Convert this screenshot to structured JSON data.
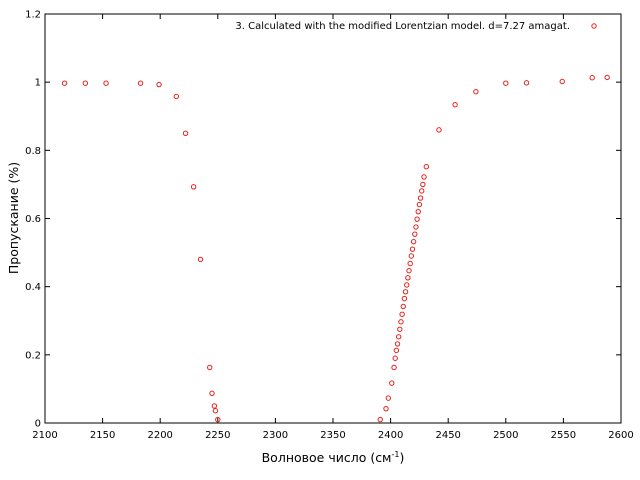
{
  "chart_data": {
    "type": "scatter",
    "title": "",
    "xlabel": "Волновое число (см",
    "xlabel_sup": "-1",
    "xlabel_suffix": ")",
    "ylabel": "Пропускание (%)",
    "xlim": [
      2100,
      2600
    ],
    "ylim": [
      0,
      1.2
    ],
    "x_ticks": [
      "2100",
      "2150",
      "2200",
      "2250",
      "2300",
      "2350",
      "2400",
      "2450",
      "2500",
      "2550",
      "2600"
    ],
    "y_ticks": [
      "0",
      "0.2",
      "0.4",
      "0.6",
      "0.8",
      "1",
      "1.2"
    ],
    "grid": false,
    "legend_position": "top-right",
    "marker": "open-circle",
    "series": [
      {
        "name": "3. Calculated with the modified Lorentzian model. d=7.27 amagat.",
        "color": "#e8211b",
        "points": [
          [
            2117,
            0.997
          ],
          [
            2135,
            0.997
          ],
          [
            2153,
            0.997
          ],
          [
            2183,
            0.997
          ],
          [
            2199,
            0.993
          ],
          [
            2214,
            0.958
          ],
          [
            2222,
            0.85
          ],
          [
            2229,
            0.693
          ],
          [
            2235,
            0.48
          ],
          [
            2243,
            0.163
          ],
          [
            2245,
            0.087
          ],
          [
            2247,
            0.05
          ],
          [
            2248,
            0.036
          ],
          [
            2250,
            0.01
          ],
          [
            2391,
            0.01
          ],
          [
            2396,
            0.042
          ],
          [
            2398,
            0.073
          ],
          [
            2401,
            0.117
          ],
          [
            2403,
            0.163
          ],
          [
            2404,
            0.19
          ],
          [
            2405,
            0.213
          ],
          [
            2406,
            0.232
          ],
          [
            2407,
            0.253
          ],
          [
            2408,
            0.275
          ],
          [
            2409,
            0.297
          ],
          [
            2410,
            0.319
          ],
          [
            2411,
            0.342
          ],
          [
            2412,
            0.365
          ],
          [
            2413,
            0.385
          ],
          [
            2414,
            0.405
          ],
          [
            2415,
            0.426
          ],
          [
            2416,
            0.447
          ],
          [
            2417,
            0.468
          ],
          [
            2418,
            0.49
          ],
          [
            2419,
            0.51
          ],
          [
            2420,
            0.532
          ],
          [
            2421,
            0.554
          ],
          [
            2422,
            0.575
          ],
          [
            2423,
            0.598
          ],
          [
            2424,
            0.62
          ],
          [
            2425,
            0.641
          ],
          [
            2426,
            0.66
          ],
          [
            2427,
            0.681
          ],
          [
            2428,
            0.7
          ],
          [
            2429,
            0.722
          ],
          [
            2431,
            0.752
          ],
          [
            2442,
            0.86
          ],
          [
            2456,
            0.934
          ],
          [
            2474,
            0.972
          ],
          [
            2500,
            0.997
          ],
          [
            2518,
            0.998
          ],
          [
            2549,
            1.002
          ],
          [
            2575,
            1.013
          ],
          [
            2588,
            1.014
          ]
        ]
      }
    ]
  }
}
